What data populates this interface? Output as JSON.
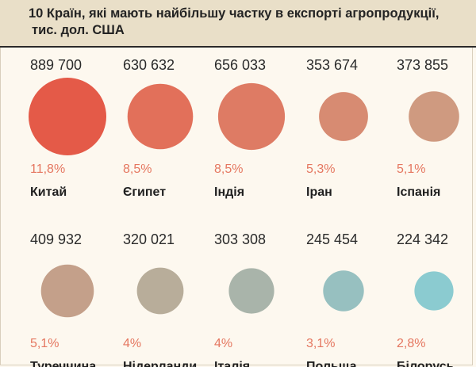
{
  "header": {
    "title_line1": "10 Країн, які мають найбільшу частку в експорті агропродукції,",
    "title_line2": "тис. дол. США"
  },
  "chart_data": {
    "type": "bubble",
    "title": "10 Країн, які мають найбільшу частку в експорті агропродукції, тис. дол. США",
    "items": [
      {
        "country": "Китай",
        "value": 889700,
        "value_label": "889 700",
        "share": 11.8,
        "share_label": "11,8%",
        "color": "#e45a48"
      },
      {
        "country": "Єгипет",
        "value": 630632,
        "value_label": "630 632",
        "share": 8.5,
        "share_label": "8,5%",
        "color": "#e2705a"
      },
      {
        "country": "Індія",
        "value": 656033,
        "value_label": "656 033",
        "share": 8.5,
        "share_label": "8,5%",
        "color": "#de7b64"
      },
      {
        "country": "Іран",
        "value": 353674,
        "value_label": "353 674",
        "share": 5.3,
        "share_label": "5,3%",
        "color": "#d78b72"
      },
      {
        "country": "Іспанія",
        "value": 373855,
        "value_label": "373 855",
        "share": 5.1,
        "share_label": "5,1%",
        "color": "#cf9a80"
      },
      {
        "country": "Туреччина",
        "value": 409932,
        "value_label": "409 932",
        "share": 5.1,
        "share_label": "5,1%",
        "color": "#c4a08a"
      },
      {
        "country": "Нідерланди",
        "value": 320021,
        "value_label": "320 021",
        "share": 4,
        "share_label": "4%",
        "color": "#b8ad9a"
      },
      {
        "country": "Італія",
        "value": 303308,
        "value_label": "303 308",
        "share": 4,
        "share_label": "4%",
        "color": "#a9b4aa"
      },
      {
        "country": "Польща",
        "value": 245454,
        "value_label": "245 454",
        "share": 3.1,
        "share_label": "3,1%",
        "color": "#97c0c0"
      },
      {
        "country": "Білорусь",
        "value": 224342,
        "value_label": "224 342",
        "share": 2.8,
        "share_label": "2,8%",
        "color": "#8bcbd0"
      }
    ]
  }
}
